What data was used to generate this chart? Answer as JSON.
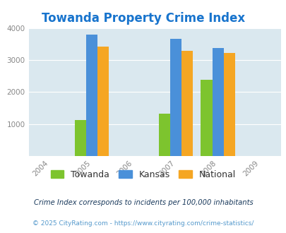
{
  "title": "Towanda Property Crime Index",
  "title_color": "#1874CD",
  "years": [
    2005,
    2007,
    2008
  ],
  "towanda": [
    1120,
    1320,
    2380
  ],
  "kansas": [
    3800,
    3670,
    3380
  ],
  "national": [
    3420,
    3290,
    3210
  ],
  "bar_colors": {
    "towanda": "#7DC42E",
    "kansas": "#4A90D9",
    "national": "#F5A623"
  },
  "xlim": [
    2003.5,
    2009.5
  ],
  "ylim": [
    0,
    4000
  ],
  "yticks": [
    0,
    1000,
    2000,
    3000,
    4000
  ],
  "xticks": [
    2004,
    2005,
    2006,
    2007,
    2008,
    2009
  ],
  "bg_color": "#DAE8EF",
  "bar_width": 0.27,
  "legend_labels": [
    "Towanda",
    "Kansas",
    "National"
  ],
  "footnote1": "Crime Index corresponds to incidents per 100,000 inhabitants",
  "footnote2": "© 2025 CityRating.com - https://www.cityrating.com/crime-statistics/",
  "footnote1_color": "#1a3a5c",
  "footnote2_color": "#5599cc"
}
